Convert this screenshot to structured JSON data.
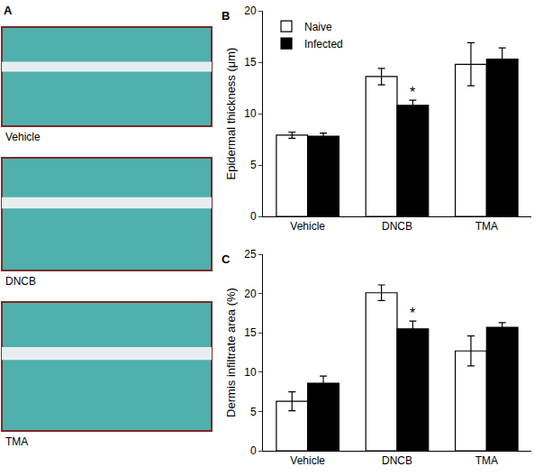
{
  "panel_a": {
    "panel": "A",
    "images": [
      "Vehicle",
      "DNCB",
      "TMA"
    ]
  },
  "chart_data": [
    {
      "type": "bar",
      "panel": "B",
      "y_label": "Epidermal thickness (μm)",
      "categories": [
        "Vehicle",
        "DNCB",
        "TMA"
      ],
      "series": [
        {
          "name": "Naive",
          "color": "#ffffff",
          "values": [
            7.9,
            13.6,
            14.8
          ],
          "errors": [
            0.3,
            0.8,
            2.1
          ]
        },
        {
          "name": "Infected",
          "color": "#000000",
          "values": [
            7.8,
            10.8,
            15.3
          ],
          "errors": [
            0.3,
            0.5,
            1.1
          ]
        }
      ],
      "annotations": [
        {
          "text": "*",
          "category": "DNCB",
          "series": "Infected"
        }
      ],
      "ylim": [
        0,
        20
      ],
      "yticks": [
        0,
        5,
        10,
        15,
        20
      ],
      "grid": false,
      "legend": "top left"
    },
    {
      "type": "bar",
      "panel": "C",
      "y_label": "Dermis infiltrate area (%)",
      "categories": [
        "Vehicle",
        "DNCB",
        "TMA"
      ],
      "series": [
        {
          "name": "Naive",
          "color": "#ffffff",
          "values": [
            6.3,
            20.1,
            12.7
          ],
          "errors": [
            1.2,
            1.0,
            1.9
          ]
        },
        {
          "name": "Infected",
          "color": "#000000",
          "values": [
            8.6,
            15.5,
            15.7
          ],
          "errors": [
            0.9,
            1.0,
            0.6
          ]
        }
      ],
      "annotations": [
        {
          "text": "*",
          "category": "DNCB",
          "series": "Infected"
        }
      ],
      "ylim": [
        0,
        25
      ],
      "yticks": [
        0,
        5,
        10,
        15,
        20,
        25
      ],
      "grid": false
    }
  ]
}
